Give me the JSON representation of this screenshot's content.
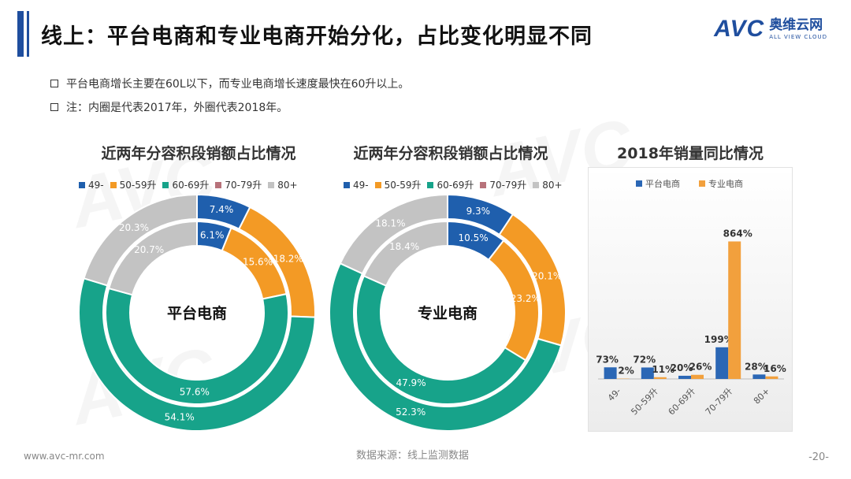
{
  "header": {
    "title": "线上：平台电商和专业电商开始分化，占比变化明显不同",
    "brand_logo": "AVC",
    "brand_cn": "奥维云网",
    "brand_en": "ALL VIEW CLOUD"
  },
  "bullets": [
    "平台电商增长主要在60L以下，而专业电商增长速度最快在60升以上。",
    "注：内圈是代表2017年，外圈代表2018年。"
  ],
  "colors": {
    "c49": "#1f5fad",
    "c50": "#f39a25",
    "c60": "#17a38a",
    "c70": "#b7727a",
    "c80": "#c3c3c3",
    "blue": "#2b67b5",
    "orange": "#f2a03d"
  },
  "chart_data": [
    {
      "type": "pie",
      "subtype": "donut-double-ring",
      "title": "近两年分容积段销额占比情况",
      "center_label": "平台电商",
      "legend": [
        "49-",
        "50-59升",
        "60-69升",
        "70-79升",
        "80+"
      ],
      "inner_2017": [
        6.1,
        15.6,
        57.6,
        0.0,
        20.7
      ],
      "outer_2018": [
        7.4,
        18.2,
        54.1,
        0.0,
        20.3
      ],
      "inner_labels": [
        "6.1%",
        "15.6%",
        "57.6%",
        "",
        "20.7%"
      ],
      "outer_labels": [
        "7.4%",
        "18.2%",
        "54.1%",
        "",
        "20.3%"
      ]
    },
    {
      "type": "pie",
      "subtype": "donut-double-ring",
      "title": "近两年分容积段销额占比情况",
      "center_label": "专业电商",
      "legend": [
        "49-",
        "50-59升",
        "60-69升",
        "70-79升",
        "80+"
      ],
      "inner_2017": [
        10.5,
        23.2,
        47.9,
        0.0,
        18.4
      ],
      "outer_2018": [
        9.3,
        20.1,
        52.3,
        0.0,
        18.1
      ],
      "inner_labels": [
        "10.5%",
        "23.2%",
        "47.9%",
        "",
        "18.4%"
      ],
      "outer_labels": [
        "9.3%",
        "20.1%",
        "52.3%",
        "",
        "18.1%"
      ]
    },
    {
      "type": "bar",
      "title": "2018年销量同比情况",
      "categories": [
        "49-",
        "50-59升",
        "60-69升",
        "70-79升",
        "80+"
      ],
      "series": [
        {
          "name": "平台电商",
          "values": [
            73,
            72,
            20,
            199,
            28
          ],
          "labels": [
            "73%",
            "72%",
            "20%",
            "199%",
            "28%"
          ]
        },
        {
          "name": "专业电商",
          "values": [
            2,
            11,
            26,
            864,
            16
          ],
          "labels": [
            "2%",
            "11%",
            "26%",
            "864%",
            "16%"
          ]
        }
      ],
      "ylim": [
        0,
        1000
      ]
    }
  ],
  "footer": {
    "website": "www.avc-mr.com",
    "source": "数据来源：线上监测数据",
    "page": "-20-"
  }
}
